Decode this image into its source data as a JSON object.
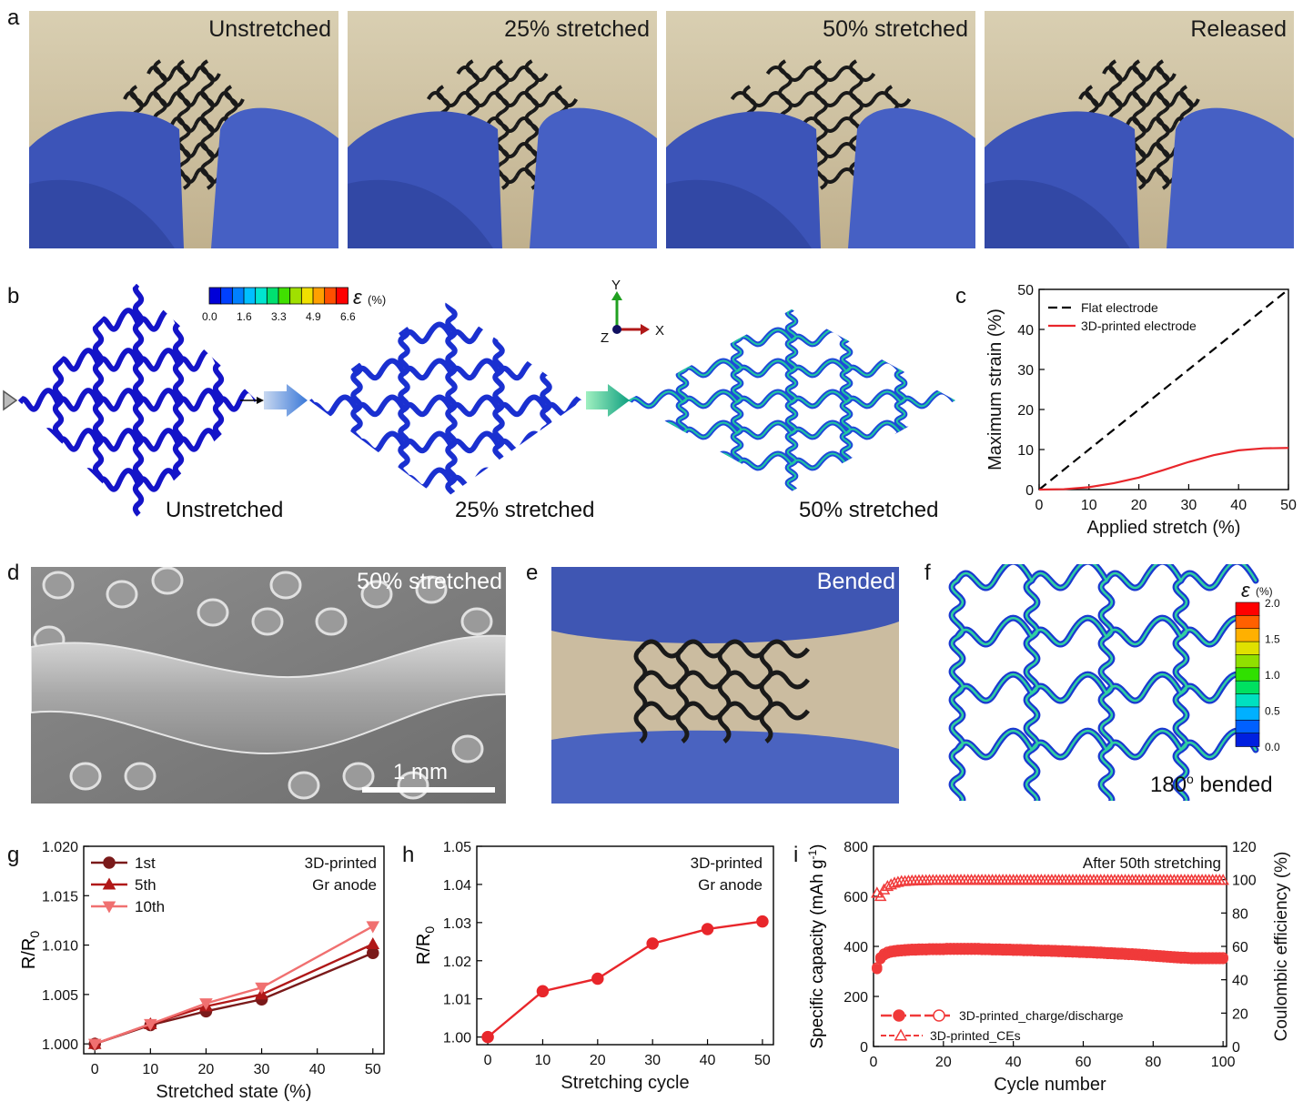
{
  "panels": {
    "a": {
      "letter": "a",
      "captions": [
        "Unstretched",
        "25% stretched",
        "50% stretched",
        "Released"
      ]
    },
    "b": {
      "letter": "b",
      "labels": [
        "Unstretched",
        "25% stretched",
        "50% stretched"
      ],
      "colorbar": {
        "symbol": "ε",
        "unit": "(%)",
        "ticks": [
          "0.0",
          "1.6",
          "3.3",
          "4.9",
          "6.6"
        ],
        "colors": [
          "#0000d8",
          "#0040ff",
          "#0080ff",
          "#00bfff",
          "#00e5d0",
          "#00e070",
          "#40e000",
          "#a0e000",
          "#f0e000",
          "#ffa000",
          "#ff5000",
          "#ff0000"
        ]
      },
      "axes": {
        "y": "Y",
        "x": "X",
        "z": "Z"
      }
    },
    "d": {
      "letter": "d",
      "caption": "50% stretched",
      "scalebar": "1 mm"
    },
    "e": {
      "letter": "e",
      "caption": "Bended"
    },
    "f": {
      "letter": "f",
      "label_main": "180",
      "label_sup": "o",
      "label_rest": " bended",
      "colorbar": {
        "symbol": "ε",
        "unit": "(%)",
        "ticks": [
          "2.0",
          "1.5",
          "1.0",
          "0.5",
          "0.0"
        ],
        "colors": [
          "#ff0000",
          "#ff6000",
          "#ffb000",
          "#e0e000",
          "#90e000",
          "#30e000",
          "#00e060",
          "#00e0c0",
          "#00b0ff",
          "#0060ff",
          "#0020e0"
        ]
      }
    }
  },
  "chart_data": [
    {
      "id": "c",
      "letter": "c",
      "type": "line",
      "xlabel": "Applied stretch (%)",
      "ylabel": "Maximum strain (%)",
      "xlim": [
        0,
        50
      ],
      "ylim": [
        0,
        50
      ],
      "xticks": [
        0,
        10,
        20,
        30,
        40,
        50
      ],
      "yticks": [
        0,
        10,
        20,
        30,
        40,
        50
      ],
      "legend": "top-left",
      "series": [
        {
          "name": "Flat electrode",
          "color": "#000000",
          "dash": true,
          "x": [
            0,
            50
          ],
          "y": [
            0,
            50
          ]
        },
        {
          "name": "3D-printed electrode",
          "color": "#e8262b",
          "dash": false,
          "x": [
            0,
            5,
            10,
            15,
            20,
            25,
            30,
            35,
            40,
            45,
            50
          ],
          "y": [
            0,
            0.1,
            0.6,
            1.6,
            3.0,
            4.9,
            6.9,
            8.6,
            9.8,
            10.3,
            10.4
          ]
        }
      ]
    },
    {
      "id": "g",
      "letter": "g",
      "type": "line",
      "xlabel": "Stretched state (%)",
      "ylabel": "R/R",
      "ylabel_sub": "0",
      "xlim": [
        -2,
        52
      ],
      "ylim": [
        0.999,
        1.02
      ],
      "xticks": [
        0,
        10,
        20,
        30,
        40,
        50
      ],
      "yticks": [
        1.0,
        1.005,
        1.01,
        1.015,
        1.02
      ],
      "ytick_labels": [
        "1.000",
        "1.005",
        "1.010",
        "1.015",
        "1.020"
      ],
      "annotation": [
        "3D-printed",
        "Gr anode"
      ],
      "legend": "top-left",
      "series": [
        {
          "name": "1st",
          "color": "#7a1a1a",
          "marker": "circle",
          "x": [
            0,
            10,
            20,
            30,
            50
          ],
          "y": [
            1.0,
            1.0019,
            1.0033,
            1.0045,
            1.0092
          ]
        },
        {
          "name": "5th",
          "color": "#b01818",
          "marker": "triangle-up",
          "x": [
            0,
            10,
            20,
            30,
            50
          ],
          "y": [
            1.0,
            1.002,
            1.0038,
            1.005,
            1.0101
          ]
        },
        {
          "name": "10th",
          "color": "#f07070",
          "marker": "triangle-down",
          "x": [
            0,
            10,
            20,
            30,
            50
          ],
          "y": [
            1.0,
            1.002,
            1.0041,
            1.0057,
            1.0119
          ]
        }
      ]
    },
    {
      "id": "h",
      "letter": "h",
      "type": "line",
      "xlabel": "Stretching cycle",
      "ylabel": "R/R",
      "ylabel_sub": "0",
      "xlim": [
        -2,
        52
      ],
      "ylim": [
        0.998,
        1.05
      ],
      "xticks": [
        0,
        10,
        20,
        30,
        40,
        50
      ],
      "yticks": [
        1.0,
        1.01,
        1.02,
        1.03,
        1.04,
        1.05
      ],
      "ytick_labels": [
        "1.00",
        "1.01",
        "1.02",
        "1.03",
        "1.04",
        "1.05"
      ],
      "annotation": [
        "3D-printed",
        "Gr anode"
      ],
      "series": [
        {
          "name": "",
          "color": "#e8262b",
          "marker": "circle",
          "x": [
            0,
            10,
            20,
            30,
            40,
            50
          ],
          "y": [
            1.0,
            1.012,
            1.0153,
            1.0245,
            1.0283,
            1.0303
          ]
        }
      ]
    },
    {
      "id": "i",
      "letter": "i",
      "type": "scatter",
      "xlabel": "Cycle number",
      "ylabel": "Specific capacity (mAh g",
      "ylabel_sup": "-1",
      "ylabel_end": ")",
      "y2label": "Coulombic efficiency (%)",
      "xlim": [
        0,
        101
      ],
      "ylim": [
        0,
        800
      ],
      "y2lim": [
        0,
        120
      ],
      "xticks": [
        0,
        20,
        40,
        60,
        80,
        100
      ],
      "yticks": [
        0,
        200,
        400,
        600,
        800
      ],
      "y2ticks": [
        0,
        20,
        40,
        60,
        80,
        100,
        120
      ],
      "annotation": "After 50th stretching",
      "legend": "bottom-left",
      "series": [
        {
          "name": "3D-printed_charge/discharge",
          "color": "#f03a3a",
          "axis": "left",
          "x_start": 1,
          "x_end": 100,
          "values_by_cycle": [
            310,
            350,
            365,
            372,
            376,
            378,
            380,
            381,
            382,
            383,
            384,
            384,
            385,
            385,
            385,
            386,
            386,
            386,
            386,
            386,
            387,
            387,
            387,
            387,
            387,
            387,
            387,
            387,
            387,
            387,
            386,
            386,
            386,
            385,
            385,
            385,
            384,
            384,
            384,
            383,
            383,
            383,
            382,
            382,
            382,
            381,
            381,
            380,
            380,
            380,
            379,
            379,
            378,
            378,
            377,
            377,
            376,
            376,
            375,
            375,
            374,
            374,
            373,
            372,
            372,
            371,
            370,
            370,
            369,
            368,
            368,
            367,
            366,
            366,
            365,
            364,
            363,
            362,
            361,
            360,
            359,
            358,
            357,
            356,
            355,
            354,
            353,
            352,
            352,
            351,
            350,
            350,
            350,
            350,
            350,
            350,
            350,
            350,
            350,
            350
          ]
        },
        {
          "name": "3D-printed_CEs",
          "color": "#f03a3a",
          "axis": "right",
          "x_start": 1,
          "x_end": 100,
          "values_by_cycle": [
            92,
            90,
            94,
            96,
            97,
            98,
            98.5,
            99,
            99,
            99.2,
            99.3,
            99.4,
            99.5,
            99.5,
            99.5,
            99.6,
            99.6,
            99.6,
            99.6,
            99.6,
            99.6,
            99.7,
            99.7,
            99.7,
            99.7,
            99.7,
            99.7,
            99.7,
            99.7,
            99.7,
            99.7,
            99.7,
            99.7,
            99.7,
            99.7,
            99.7,
            99.7,
            99.7,
            99.7,
            99.7,
            99.7,
            99.7,
            99.7,
            99.7,
            99.7,
            99.7,
            99.7,
            99.7,
            99.7,
            99.7,
            99.7,
            99.7,
            99.7,
            99.7,
            99.7,
            99.7,
            99.7,
            99.7,
            99.7,
            99.7,
            99.7,
            99.7,
            99.7,
            99.7,
            99.7,
            99.7,
            99.7,
            99.7,
            99.7,
            99.7,
            99.7,
            99.7,
            99.7,
            99.7,
            99.7,
            99.7,
            99.7,
            99.7,
            99.7,
            99.7,
            99.7,
            99.7,
            99.7,
            99.7,
            99.7,
            99.7,
            99.7,
            99.7,
            99.7,
            99.7,
            99.7,
            99.7,
            99.7,
            99.7,
            99.7,
            99.7,
            99.7,
            99.7,
            99.7,
            99.7
          ]
        }
      ]
    }
  ]
}
